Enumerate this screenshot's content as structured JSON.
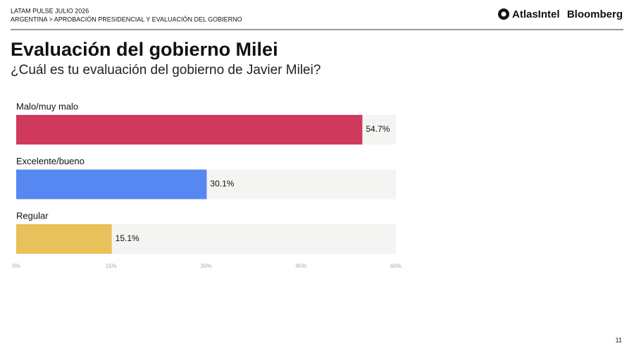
{
  "header": {
    "line1": "LATAM PULSE JULIO 2026",
    "line2": "ARGENTINA > APROBACIÓN PRESIDENCIAL Y EVALUACIÓN DEL GOBIERNO"
  },
  "logos": [
    "AtlasIntel",
    "Bloomberg"
  ],
  "page_number": "11",
  "chart_data": {
    "type": "bar",
    "orientation": "horizontal",
    "title": "Evaluación del gobierno Milei",
    "subtitle": "¿Cuál es tu evaluación del gobierno de Javier Milei?",
    "categories": [
      "Malo/muy malo",
      "Excelente/bueno",
      "Regular"
    ],
    "values": [
      54.7,
      30.1,
      15.1
    ],
    "value_labels": [
      "54.7%",
      "30.1%",
      "15.1%"
    ],
    "colors": [
      "#cf3a5c",
      "#5787f0",
      "#e8c15a"
    ],
    "xlim": [
      0,
      60
    ],
    "xticks": [
      {
        "value": 0,
        "label": "0%"
      },
      {
        "value": 15,
        "label": "15%"
      },
      {
        "value": 30,
        "label": "30%"
      },
      {
        "value": 45,
        "label": "45%"
      },
      {
        "value": 60,
        "label": "60%"
      }
    ],
    "grid": false
  }
}
